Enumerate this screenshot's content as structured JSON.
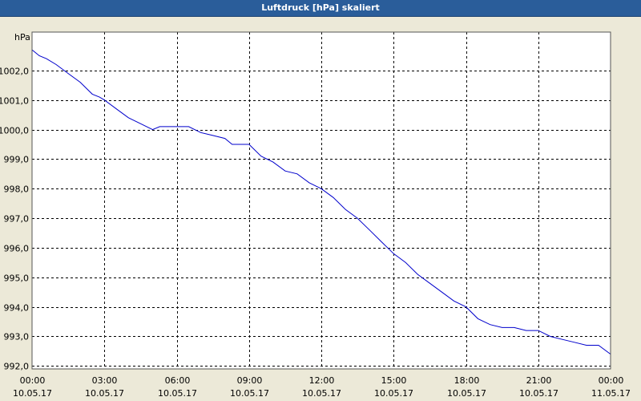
{
  "window": {
    "title": "Luftdruck [hPa] skaliert"
  },
  "colors": {
    "titlebar": "#2a5d9a",
    "line": "#0000cc",
    "plot_bg": "#ffffff",
    "grid": "#000000"
  },
  "chart_data": {
    "type": "line",
    "title": "Luftdruck [hPa] skaliert",
    "ylabel": "hPa",
    "ylim": [
      991.9,
      1003.3
    ],
    "xlim": [
      0,
      24
    ],
    "grid": true,
    "y_ticks": [
      {
        "value": 992.0,
        "label": "992,0"
      },
      {
        "value": 993.0,
        "label": "993,0"
      },
      {
        "value": 994.0,
        "label": "994,0"
      },
      {
        "value": 995.0,
        "label": "995,0"
      },
      {
        "value": 996.0,
        "label": "996,0"
      },
      {
        "value": 997.0,
        "label": "997,0"
      },
      {
        "value": 998.0,
        "label": "998,0"
      },
      {
        "value": 999.0,
        "label": "999,0"
      },
      {
        "value": 1000.0,
        "label": "1000,0"
      },
      {
        "value": 1001.0,
        "label": "1001,0"
      },
      {
        "value": 1002.0,
        "label": "1002,0"
      }
    ],
    "x_ticks": [
      {
        "value": 0,
        "time": "00:00",
        "date": "10.05.17"
      },
      {
        "value": 3,
        "time": "03:00",
        "date": "10.05.17"
      },
      {
        "value": 6,
        "time": "06:00",
        "date": "10.05.17"
      },
      {
        "value": 9,
        "time": "09:00",
        "date": "10.05.17"
      },
      {
        "value": 12,
        "time": "12:00",
        "date": "10.05.17"
      },
      {
        "value": 15,
        "time": "15:00",
        "date": "10.05.17"
      },
      {
        "value": 18,
        "time": "18:00",
        "date": "10.05.17"
      },
      {
        "value": 21,
        "time": "21:00",
        "date": "10.05.17"
      },
      {
        "value": 24,
        "time": "00:00",
        "date": "11.05.17"
      }
    ],
    "series": [
      {
        "x": [
          0.0,
          0.3,
          0.6,
          1.0,
          1.5,
          2.0,
          2.5,
          2.8,
          3.0,
          3.5,
          4.0,
          4.5,
          5.0,
          5.3,
          6.0,
          6.5,
          7.0,
          7.5,
          8.0,
          8.3,
          8.5,
          9.0,
          9.5,
          10.0,
          10.5,
          11.0,
          11.5,
          12.0,
          12.5,
          13.0,
          13.5,
          14.0,
          14.5,
          15.0,
          15.5,
          16.0,
          16.5,
          17.0,
          17.5,
          18.0,
          18.5,
          19.0,
          19.5,
          20.0,
          20.5,
          21.0,
          21.5,
          22.0,
          22.5,
          23.0,
          23.5,
          24.0
        ],
        "y": [
          1002.7,
          1002.5,
          1002.4,
          1002.2,
          1001.9,
          1001.6,
          1001.2,
          1001.1,
          1001.0,
          1000.7,
          1000.4,
          1000.2,
          1000.0,
          1000.1,
          1000.1,
          1000.1,
          999.9,
          999.8,
          999.7,
          999.5,
          999.5,
          999.5,
          999.1,
          998.9,
          998.6,
          998.5,
          998.2,
          998.0,
          997.7,
          997.3,
          997.0,
          996.6,
          996.2,
          995.8,
          995.5,
          995.1,
          994.8,
          994.5,
          994.2,
          994.0,
          993.6,
          993.4,
          993.3,
          993.3,
          993.2,
          993.2,
          993.0,
          992.9,
          992.8,
          992.7,
          992.7,
          992.4
        ]
      }
    ]
  }
}
